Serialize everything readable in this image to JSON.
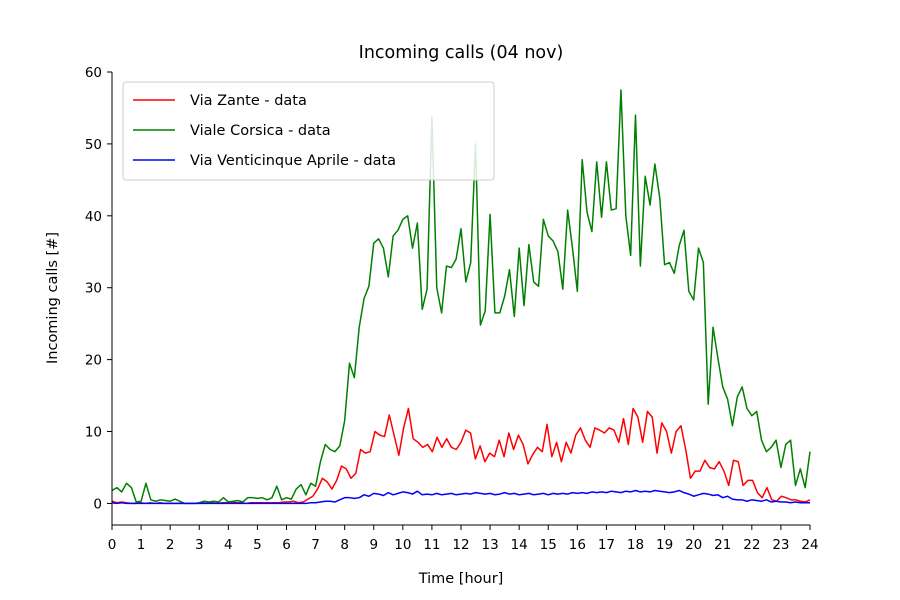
{
  "chart_data": {
    "type": "line",
    "title": "Incoming calls (04 nov)",
    "xlabel": "Time [hour]",
    "ylabel": "Incoming calls [#]",
    "xlim": [
      0,
      24
    ],
    "ylim": [
      -3,
      60
    ],
    "x_ticks": [
      "0",
      "1",
      "2",
      "3",
      "4",
      "5",
      "6",
      "7",
      "8",
      "9",
      "10",
      "11",
      "12",
      "13",
      "14",
      "15",
      "16",
      "17",
      "18",
      "19",
      "20",
      "21",
      "22",
      "23",
      "24"
    ],
    "y_ticks": [
      "0",
      "10",
      "20",
      "30",
      "40",
      "50",
      "60"
    ],
    "grid": false,
    "legend_position": "top-left",
    "step_hours": 0.16667,
    "series": [
      {
        "name": "Via Zante - data",
        "color": "#ff0000",
        "values": [
          0.3,
          0.1,
          0.2,
          0.1,
          0,
          0,
          0.1,
          0,
          0.1,
          0,
          0.1,
          0,
          0,
          0,
          0,
          0,
          0,
          0,
          0,
          0.1,
          0,
          0.1,
          0,
          0.1,
          0.1,
          0.2,
          0.1,
          0.1,
          0,
          0.1,
          0.1,
          0.1,
          0.1,
          0.1,
          0.1,
          0.1,
          0.2,
          0.2,
          0.3,
          0.1,
          0.2,
          0.6,
          1.0,
          2.0,
          3.5,
          3.0,
          2.0,
          3.2,
          5.2,
          4.8,
          3.5,
          4.2,
          7.5,
          7.0,
          7.2,
          10.0,
          9.5,
          9.3,
          12.3,
          9.5,
          6.7,
          10.5,
          13.2,
          9.0,
          8.5,
          7.8,
          8.2,
          7.2,
          9.2,
          7.8,
          9.0,
          7.8,
          7.5,
          8.5,
          10.2,
          9.8,
          6.2,
          8.0,
          5.8,
          7.0,
          6.5,
          8.8,
          6.5,
          9.8,
          7.5,
          9.5,
          8.2,
          5.5,
          6.8,
          7.8,
          7.2,
          11.0,
          6.5,
          8.5,
          5.8,
          8.5,
          7.0,
          9.5,
          10.5,
          8.8,
          7.8,
          10.5,
          10.2,
          9.8,
          10.5,
          10.2,
          8.5,
          11.8,
          8.2,
          13.2,
          12.0,
          8.5,
          12.8,
          12.0,
          7.0,
          11.2,
          10.0,
          7.0,
          10.0,
          10.8,
          7.5,
          3.5,
          4.5,
          4.5,
          6.0,
          5.0,
          4.8,
          5.8,
          4.5,
          2.5,
          6.0,
          5.8,
          2.5,
          3.2,
          3.2,
          1.5,
          0.8,
          2.2,
          0.5,
          0.3,
          1.0,
          0.8,
          0.5,
          0.5,
          0.3,
          0.2,
          0.5
        ]
      },
      {
        "name": "Viale Corsica - data",
        "color": "#008000",
        "values": [
          1.8,
          2.2,
          1.6,
          2.8,
          2.2,
          0.2,
          0.3,
          2.8,
          0.5,
          0.3,
          0.5,
          0.4,
          0.3,
          0.6,
          0.3,
          0,
          0,
          0,
          0.1,
          0.3,
          0.2,
          0.3,
          0.2,
          0.8,
          0.2,
          0.3,
          0.4,
          0.2,
          0.8,
          0.8,
          0.7,
          0.8,
          0.5,
          0.8,
          2.4,
          0.5,
          0.8,
          0.6,
          2.0,
          2.6,
          1.2,
          2.8,
          2.4,
          5.8,
          8.2,
          7.5,
          7.2,
          8.0,
          11.5,
          19.5,
          17.5,
          24.5,
          28.5,
          30.2,
          36.2,
          36.8,
          35.5,
          31.5,
          37.2,
          38.0,
          39.5,
          40.0,
          35.5,
          39.0,
          27.0,
          29.8,
          53.8,
          30.0,
          26.5,
          33.0,
          32.8,
          34.0,
          38.2,
          30.8,
          33.5,
          50.0,
          24.8,
          26.8,
          40.2,
          26.5,
          26.5,
          28.8,
          32.5,
          26.0,
          35.5,
          27.5,
          36.0,
          30.8,
          30.2,
          39.5,
          37.2,
          36.5,
          35.0,
          29.8,
          40.8,
          35.5,
          29.5,
          47.8,
          40.5,
          37.8,
          47.5,
          39.8,
          47.5,
          40.8,
          41.0,
          57.5,
          40.0,
          34.5,
          54.0,
          33.0,
          45.5,
          41.5,
          47.2,
          42.5,
          33.2,
          33.5,
          32.0,
          35.8,
          38.0,
          29.5,
          28.3,
          35.5,
          33.5,
          13.8,
          24.5,
          20.2,
          16.2,
          14.5,
          10.8,
          14.8,
          16.2,
          13.2,
          12.2,
          12.8,
          8.8,
          7.2,
          7.8,
          8.8,
          5.0,
          8.2,
          8.8,
          2.5,
          4.8,
          2.2,
          7.2
        ]
      },
      {
        "name": "Via Venticinque Aprile - data",
        "color": "#0000ff",
        "values": [
          0.1,
          0,
          0.1,
          0,
          0,
          0,
          0,
          0,
          0,
          0,
          0,
          0,
          0,
          0,
          0,
          0,
          0,
          0,
          0,
          0,
          0,
          0,
          0,
          0,
          0,
          0,
          0,
          0,
          0,
          0,
          0,
          0,
          0,
          0,
          0,
          0,
          0,
          0,
          0,
          0,
          0,
          0.1,
          0.1,
          0.2,
          0.3,
          0.3,
          0.2,
          0.5,
          0.8,
          0.8,
          0.7,
          0.8,
          1.2,
          1.0,
          1.4,
          1.3,
          1.1,
          1.5,
          1.2,
          1.4,
          1.6,
          1.5,
          1.3,
          1.7,
          1.2,
          1.3,
          1.2,
          1.4,
          1.2,
          1.3,
          1.4,
          1.2,
          1.3,
          1.4,
          1.3,
          1.5,
          1.4,
          1.3,
          1.4,
          1.2,
          1.3,
          1.5,
          1.3,
          1.4,
          1.2,
          1.3,
          1.4,
          1.2,
          1.3,
          1.4,
          1.2,
          1.4,
          1.3,
          1.4,
          1.3,
          1.5,
          1.4,
          1.5,
          1.4,
          1.6,
          1.5,
          1.6,
          1.5,
          1.7,
          1.6,
          1.5,
          1.7,
          1.6,
          1.8,
          1.6,
          1.7,
          1.6,
          1.8,
          1.7,
          1.6,
          1.5,
          1.6,
          1.8,
          1.5,
          1.3,
          1.0,
          1.2,
          1.4,
          1.3,
          1.1,
          1.2,
          0.8,
          1.0,
          0.6,
          0.5,
          0.5,
          0.3,
          0.5,
          0.4,
          0.3,
          0.5,
          0.2,
          0.3,
          0.2,
          0.2,
          0.1,
          0.2,
          0.1,
          0.1,
          0.1
        ]
      }
    ]
  }
}
